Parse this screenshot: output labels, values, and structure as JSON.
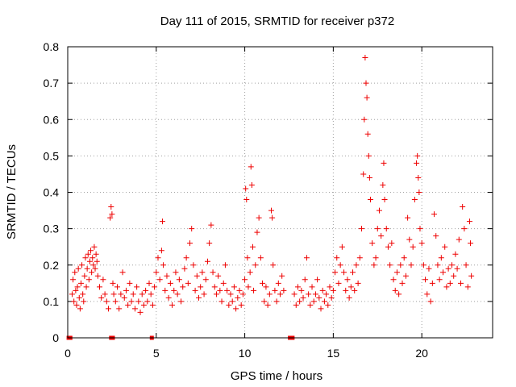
{
  "chart_data": {
    "type": "scatter",
    "title": "Day 111 of 2015, SRMTID for receiver p372",
    "xlabel": "GPS time / hours",
    "ylabel": "SRMTID / TECUs",
    "xlim": [
      0,
      24
    ],
    "ylim": [
      0,
      0.8
    ],
    "xticks": [
      0,
      5,
      10,
      15,
      20
    ],
    "xtick_labels": [
      "0",
      "5",
      "10",
      "15",
      "20"
    ],
    "yticks": [
      0,
      0.1,
      0.2,
      0.3,
      0.4,
      0.5,
      0.6,
      0.7,
      0.8
    ],
    "ytick_labels": [
      "0",
      "0.1",
      "0.2",
      "0.3",
      "0.4",
      "0.5",
      "0.6",
      "0.7",
      "0.8"
    ],
    "grid": true,
    "marker": "plus",
    "color": "#ee0000",
    "baseline_markers_x": [
      0.05,
      0.15,
      2.45,
      2.55,
      4.75,
      12.55,
      12.7
    ],
    "series": [
      {
        "name": "SRMTID",
        "points": [
          [
            0.25,
            0.12
          ],
          [
            0.3,
            0.16
          ],
          [
            0.35,
            0.1
          ],
          [
            0.4,
            0.18
          ],
          [
            0.45,
            0.13
          ],
          [
            0.5,
            0.09
          ],
          [
            0.55,
            0.14
          ],
          [
            0.6,
            0.19
          ],
          [
            0.65,
            0.11
          ],
          [
            0.7,
            0.08
          ],
          [
            0.75,
            0.15
          ],
          [
            0.8,
            0.2
          ],
          [
            0.85,
            0.12
          ],
          [
            0.9,
            0.1
          ],
          [
            0.95,
            0.17
          ],
          [
            1.0,
            0.22
          ],
          [
            1.05,
            0.14
          ],
          [
            1.1,
            0.19
          ],
          [
            1.15,
            0.23
          ],
          [
            1.2,
            0.16
          ],
          [
            1.25,
            0.21
          ],
          [
            1.3,
            0.24
          ],
          [
            1.35,
            0.18
          ],
          [
            1.4,
            0.22
          ],
          [
            1.45,
            0.2
          ],
          [
            1.5,
            0.25
          ],
          [
            1.55,
            0.19
          ],
          [
            1.6,
            0.23
          ],
          [
            1.65,
            0.21
          ],
          [
            1.7,
            0.17
          ],
          [
            1.8,
            0.14
          ],
          [
            1.9,
            0.11
          ],
          [
            2.0,
            0.16
          ],
          [
            2.1,
            0.12
          ],
          [
            2.2,
            0.1
          ],
          [
            2.3,
            0.08
          ],
          [
            2.4,
            0.33
          ],
          [
            2.45,
            0.36
          ],
          [
            2.5,
            0.34
          ],
          [
            2.55,
            0.15
          ],
          [
            2.6,
            0.12
          ],
          [
            2.7,
            0.1
          ],
          [
            2.8,
            0.14
          ],
          [
            2.9,
            0.08
          ],
          [
            3.0,
            0.12
          ],
          [
            3.1,
            0.18
          ],
          [
            3.2,
            0.11
          ],
          [
            3.3,
            0.13
          ],
          [
            3.4,
            0.09
          ],
          [
            3.5,
            0.15
          ],
          [
            3.6,
            0.1
          ],
          [
            3.7,
            0.12
          ],
          [
            3.8,
            0.08
          ],
          [
            3.9,
            0.14
          ],
          [
            4.0,
            0.1
          ],
          [
            4.1,
            0.07
          ],
          [
            4.2,
            0.12
          ],
          [
            4.3,
            0.09
          ],
          [
            4.4,
            0.13
          ],
          [
            4.5,
            0.1
          ],
          [
            4.6,
            0.15
          ],
          [
            4.7,
            0.12
          ],
          [
            4.8,
            0.09
          ],
          [
            4.9,
            0.14
          ],
          [
            5.0,
            0.18
          ],
          [
            5.1,
            0.22
          ],
          [
            5.2,
            0.16
          ],
          [
            5.3,
            0.24
          ],
          [
            5.35,
            0.32
          ],
          [
            5.4,
            0.2
          ],
          [
            5.5,
            0.13
          ],
          [
            5.6,
            0.17
          ],
          [
            5.7,
            0.11
          ],
          [
            5.8,
            0.15
          ],
          [
            5.9,
            0.09
          ],
          [
            6.0,
            0.13
          ],
          [
            6.1,
            0.18
          ],
          [
            6.2,
            0.12
          ],
          [
            6.3,
            0.16
          ],
          [
            6.4,
            0.1
          ],
          [
            6.5,
            0.14
          ],
          [
            6.6,
            0.19
          ],
          [
            6.7,
            0.22
          ],
          [
            6.8,
            0.15
          ],
          [
            6.9,
            0.26
          ],
          [
            7.0,
            0.3
          ],
          [
            7.1,
            0.2
          ],
          [
            7.2,
            0.13
          ],
          [
            7.3,
            0.17
          ],
          [
            7.4,
            0.11
          ],
          [
            7.5,
            0.14
          ],
          [
            7.6,
            0.18
          ],
          [
            7.7,
            0.12
          ],
          [
            7.8,
            0.16
          ],
          [
            7.9,
            0.21
          ],
          [
            8.0,
            0.26
          ],
          [
            8.1,
            0.31
          ],
          [
            8.2,
            0.18
          ],
          [
            8.3,
            0.14
          ],
          [
            8.4,
            0.12
          ],
          [
            8.5,
            0.17
          ],
          [
            8.6,
            0.13
          ],
          [
            8.7,
            0.1
          ],
          [
            8.8,
            0.15
          ],
          [
            8.9,
            0.2
          ],
          [
            9.0,
            0.13
          ],
          [
            9.1,
            0.09
          ],
          [
            9.2,
            0.12
          ],
          [
            9.3,
            0.1
          ],
          [
            9.4,
            0.14
          ],
          [
            9.5,
            0.08
          ],
          [
            9.6,
            0.11
          ],
          [
            9.7,
            0.13
          ],
          [
            9.8,
            0.09
          ],
          [
            9.9,
            0.12
          ],
          [
            10.0,
            0.16
          ],
          [
            10.05,
            0.41
          ],
          [
            10.1,
            0.38
          ],
          [
            10.15,
            0.22
          ],
          [
            10.2,
            0.14
          ],
          [
            10.3,
            0.18
          ],
          [
            10.35,
            0.47
          ],
          [
            10.4,
            0.42
          ],
          [
            10.45,
            0.25
          ],
          [
            10.5,
            0.13
          ],
          [
            10.6,
            0.2
          ],
          [
            10.7,
            0.29
          ],
          [
            10.8,
            0.33
          ],
          [
            10.9,
            0.22
          ],
          [
            11.0,
            0.15
          ],
          [
            11.1,
            0.1
          ],
          [
            11.2,
            0.14
          ],
          [
            11.3,
            0.09
          ],
          [
            11.4,
            0.12
          ],
          [
            11.5,
            0.35
          ],
          [
            11.55,
            0.33
          ],
          [
            11.6,
            0.2
          ],
          [
            11.7,
            0.13
          ],
          [
            11.8,
            0.1
          ],
          [
            11.9,
            0.15
          ],
          [
            12.0,
            0.12
          ],
          [
            12.1,
            0.17
          ],
          [
            12.2,
            0.13
          ],
          [
            12.8,
            0.12
          ],
          [
            12.9,
            0.09
          ],
          [
            13.0,
            0.14
          ],
          [
            13.1,
            0.1
          ],
          [
            13.2,
            0.13
          ],
          [
            13.3,
            0.11
          ],
          [
            13.4,
            0.16
          ],
          [
            13.5,
            0.22
          ],
          [
            13.6,
            0.12
          ],
          [
            13.7,
            0.09
          ],
          [
            13.8,
            0.14
          ],
          [
            13.9,
            0.1
          ],
          [
            14.0,
            0.12
          ],
          [
            14.1,
            0.16
          ],
          [
            14.2,
            0.11
          ],
          [
            14.3,
            0.08
          ],
          [
            14.4,
            0.13
          ],
          [
            14.5,
            0.1
          ],
          [
            14.6,
            0.12
          ],
          [
            14.7,
            0.09
          ],
          [
            14.8,
            0.14
          ],
          [
            14.9,
            0.11
          ],
          [
            15.0,
            0.13
          ],
          [
            15.1,
            0.18
          ],
          [
            15.2,
            0.22
          ],
          [
            15.3,
            0.15
          ],
          [
            15.4,
            0.2
          ],
          [
            15.5,
            0.25
          ],
          [
            15.6,
            0.18
          ],
          [
            15.7,
            0.13
          ],
          [
            15.8,
            0.16
          ],
          [
            15.9,
            0.11
          ],
          [
            16.0,
            0.14
          ],
          [
            16.1,
            0.18
          ],
          [
            16.2,
            0.13
          ],
          [
            16.3,
            0.2
          ],
          [
            16.4,
            0.15
          ],
          [
            16.5,
            0.22
          ],
          [
            16.6,
            0.3
          ],
          [
            16.7,
            0.45
          ],
          [
            16.75,
            0.6
          ],
          [
            16.8,
            0.77
          ],
          [
            16.85,
            0.7
          ],
          [
            16.9,
            0.66
          ],
          [
            16.95,
            0.56
          ],
          [
            17.0,
            0.5
          ],
          [
            17.05,
            0.44
          ],
          [
            17.1,
            0.38
          ],
          [
            17.2,
            0.26
          ],
          [
            17.3,
            0.2
          ],
          [
            17.4,
            0.22
          ],
          [
            17.5,
            0.3
          ],
          [
            17.6,
            0.35
          ],
          [
            17.7,
            0.28
          ],
          [
            17.8,
            0.42
          ],
          [
            17.85,
            0.48
          ],
          [
            17.9,
            0.38
          ],
          [
            18.0,
            0.3
          ],
          [
            18.1,
            0.25
          ],
          [
            18.2,
            0.2
          ],
          [
            18.3,
            0.26
          ],
          [
            18.4,
            0.16
          ],
          [
            18.5,
            0.13
          ],
          [
            18.6,
            0.18
          ],
          [
            18.7,
            0.12
          ],
          [
            18.8,
            0.2
          ],
          [
            18.9,
            0.15
          ],
          [
            19.0,
            0.22
          ],
          [
            19.1,
            0.17
          ],
          [
            19.2,
            0.33
          ],
          [
            19.3,
            0.27
          ],
          [
            19.4,
            0.2
          ],
          [
            19.5,
            0.25
          ],
          [
            19.6,
            0.38
          ],
          [
            19.7,
            0.48
          ],
          [
            19.75,
            0.5
          ],
          [
            19.8,
            0.44
          ],
          [
            19.85,
            0.4
          ],
          [
            19.9,
            0.3
          ],
          [
            20.0,
            0.26
          ],
          [
            20.1,
            0.2
          ],
          [
            20.2,
            0.16
          ],
          [
            20.3,
            0.12
          ],
          [
            20.4,
            0.19
          ],
          [
            20.5,
            0.1
          ],
          [
            20.6,
            0.15
          ],
          [
            20.7,
            0.34
          ],
          [
            20.8,
            0.28
          ],
          [
            20.9,
            0.2
          ],
          [
            21.0,
            0.16
          ],
          [
            21.1,
            0.22
          ],
          [
            21.2,
            0.18
          ],
          [
            21.3,
            0.25
          ],
          [
            21.4,
            0.14
          ],
          [
            21.5,
            0.19
          ],
          [
            21.6,
            0.15
          ],
          [
            21.7,
            0.2
          ],
          [
            21.8,
            0.17
          ],
          [
            21.9,
            0.23
          ],
          [
            22.0,
            0.19
          ],
          [
            22.1,
            0.27
          ],
          [
            22.2,
            0.15
          ],
          [
            22.3,
            0.36
          ],
          [
            22.4,
            0.3
          ],
          [
            22.5,
            0.2
          ],
          [
            22.6,
            0.14
          ],
          [
            22.7,
            0.32
          ],
          [
            22.75,
            0.26
          ],
          [
            22.8,
            0.17
          ]
        ]
      }
    ]
  }
}
